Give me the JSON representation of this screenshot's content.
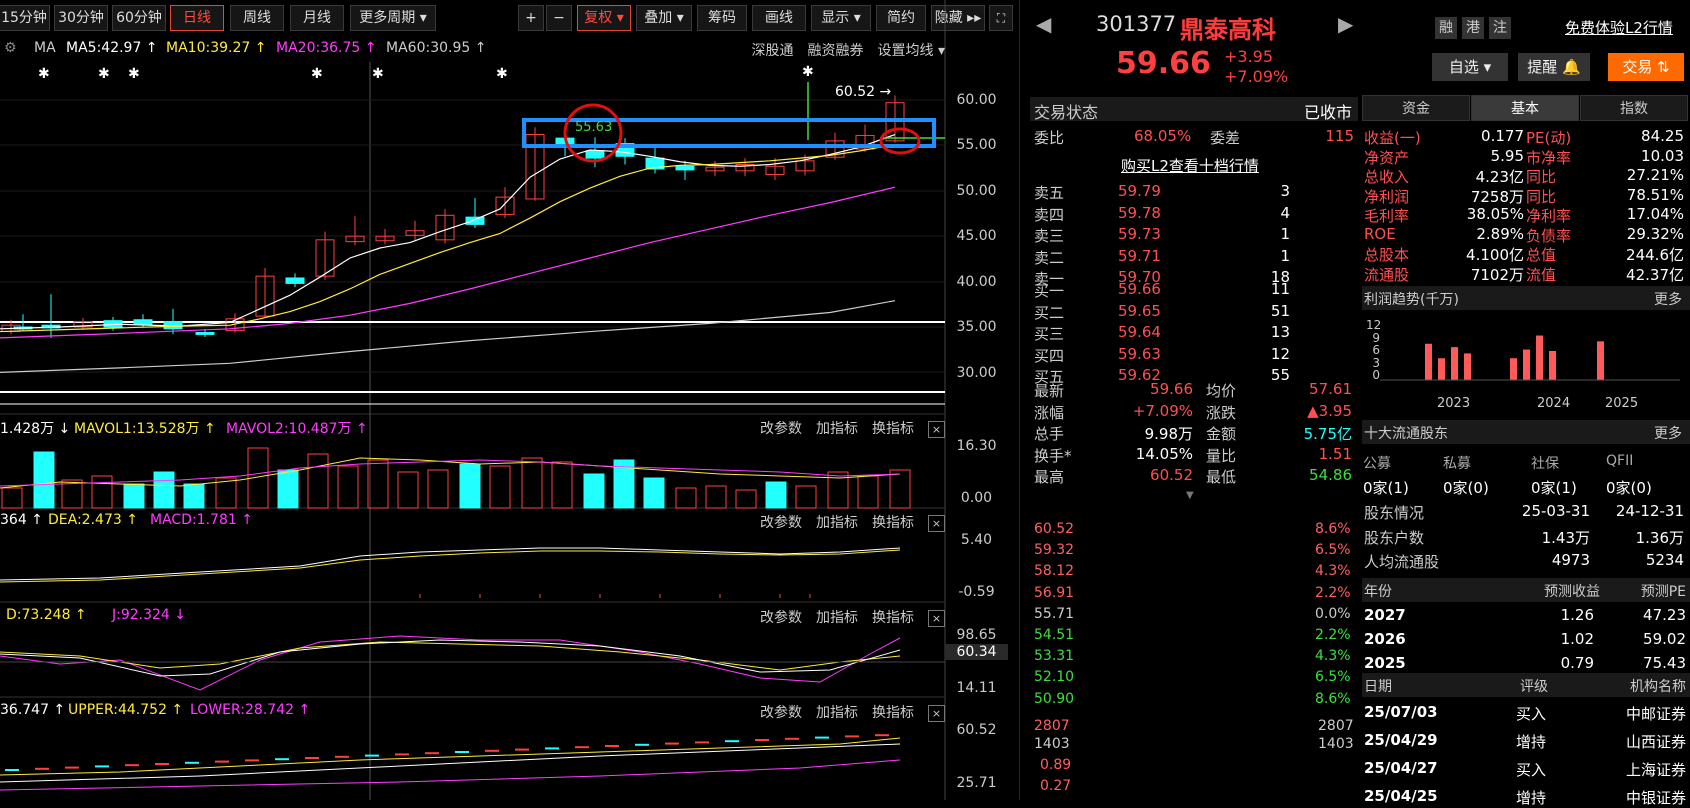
{
  "toolbar": {
    "periods": [
      "15分钟",
      "30分钟",
      "60分钟",
      "日线",
      "周线",
      "月线",
      "更多周期 ▾"
    ],
    "active": "日线",
    "plus": "+",
    "minus": "−",
    "fuquan": "复权 ▾",
    "diejia": "叠加 ▾",
    "chouma": "筹码",
    "huaxian": "画线",
    "xianshi": "显示 ▾",
    "jianyue": "简约",
    "yincang": "隐藏 ▸▸",
    "fullscreen": "⛶"
  },
  "ma_legend": {
    "ma": "MA",
    "ma5": "MA5:42.97 ↑",
    "ma10": "MA10:39.27 ↑",
    "ma20": "MA20:36.75 ↑",
    "ma60": "MA60:30.95 ↑",
    "shengu": "深股通",
    "rongzi": "融资融券",
    "shezhi": "设置均线 ▾"
  },
  "price_axis": [
    "60.00",
    "55.00",
    "50.00",
    "45.00",
    "40.00",
    "35.00",
    "30.00"
  ],
  "annotation_high": "60.52 →",
  "annotation_mark": "55.63",
  "vol": {
    "v": "1.428万 ↓",
    "mavol1": "MAVOL1:13.528万 ↑",
    "mavol2": "MAVOL2:10.487万 ↑",
    "axis_top": "16.30",
    "axis_bot": "0.00"
  },
  "macd": {
    "dif": "364 ↑",
    "dea": "DEA:2.473 ↑",
    "macd": "MACD:1.781 ↑",
    "axis_top": "5.40",
    "axis_bot": "-0.59"
  },
  "kdj": {
    "d": "D:73.248 ↑",
    "j": "J:92.324 ↓",
    "axis_top": "98.65",
    "axis_mid": "60.34",
    "axis_bot": "14.11"
  },
  "boll": {
    "mid": "36.747 ↑",
    "upper": "UPPER:44.752 ↑",
    "lower": "LOWER:28.742 ↑",
    "axis_top": "60.52",
    "axis_bot": "25.71"
  },
  "pane_actions": {
    "gai": "改参数",
    "jia": "加指标",
    "huan": "换指标",
    "close": "×"
  },
  "stock": {
    "code": "301377",
    "name": "鼎泰高科",
    "price": "59.66",
    "change": "+3.95",
    "pct": "+7.09%",
    "rong": "融",
    "gang": "港",
    "zhu": "注",
    "free_l2": "免费体验L2行情",
    "zixuan": "自选 ▾",
    "tixing": "提醒 🔔",
    "jiaoyi": "交易 ⇅"
  },
  "status": {
    "label": "交易状态",
    "value": "已收市",
    "weibi_l": "委比",
    "weibi": "68.05%",
    "weicha_l": "委差",
    "weicha": "115",
    "buy_l2": "购买L2查看十档行情"
  },
  "asks": [
    {
      "label": "卖五",
      "price": "59.79",
      "vol": "3"
    },
    {
      "label": "卖四",
      "price": "59.78",
      "vol": "4"
    },
    {
      "label": "卖三",
      "price": "59.73",
      "vol": "1"
    },
    {
      "label": "卖二",
      "price": "59.71",
      "vol": "1"
    },
    {
      "label": "卖一",
      "price": "59.70",
      "vol": "18"
    }
  ],
  "bids": [
    {
      "label": "买一",
      "price": "59.66",
      "vol": "11"
    },
    {
      "label": "买二",
      "price": "59.65",
      "vol": "51"
    },
    {
      "label": "买三",
      "price": "59.64",
      "vol": "13"
    },
    {
      "label": "买四",
      "price": "59.63",
      "vol": "12"
    },
    {
      "label": "买五",
      "price": "59.62",
      "vol": "55"
    }
  ],
  "quote": [
    {
      "l1": "最新",
      "v1": "59.66",
      "l2": "均价",
      "v2": "57.61"
    },
    {
      "l1": "涨幅",
      "v1": "+7.09%",
      "l2": "涨跌",
      "v2": "▲3.95"
    },
    {
      "l1": "总手",
      "v1": "9.98万",
      "l2": "金额",
      "v2": "5.75亿"
    },
    {
      "l1": "换手*",
      "v1": "14.05%",
      "l2": "量比",
      "v2": "1.51"
    },
    {
      "l1": "最高",
      "v1": "60.52",
      "l2": "最低",
      "v2": "54.86"
    }
  ],
  "intraday": {
    "left_axis": [
      "60.52",
      "59.32",
      "58.12",
      "56.91",
      "55.71",
      "54.51",
      "53.31",
      "52.10",
      "50.90"
    ],
    "right_axis": [
      "8.6%",
      "6.5%",
      "4.3%",
      "2.2%",
      "0.0%",
      "2.2%",
      "4.3%",
      "6.5%",
      "8.6%"
    ],
    "vol_top": "2807",
    "vol_mid": "1403",
    "macd_top": "0.89",
    "macd_bot": "0.27",
    "vol_top_r": "2807",
    "vol_mid_r": "1403"
  },
  "tabs": [
    "资金",
    "基本",
    "指数"
  ],
  "tab_active": "基本",
  "fundamentals": [
    {
      "l1": "收益(一)",
      "v1": "0.177",
      "l2": "PE(动)",
      "v2": "84.25"
    },
    {
      "l1": "净资产",
      "v1": "5.95",
      "l2": "市净率",
      "v2": "10.03"
    },
    {
      "l1": "总收入",
      "v1": "4.23亿",
      "l2": "同比",
      "v2": "27.21%"
    },
    {
      "l1": "净利润",
      "v1": "7258万",
      "l2": "同比",
      "v2": "78.51%"
    },
    {
      "l1": "毛利率",
      "v1": "38.05%",
      "l2": "净利率",
      "v2": "17.04%"
    },
    {
      "l1": "ROE",
      "v1": "2.89%",
      "l2": "负债率",
      "v2": "29.32%"
    },
    {
      "l1": "总股本",
      "v1": "4.100亿",
      "l2": "总值",
      "v2": "244.6亿"
    },
    {
      "l1": "流通股",
      "v1": "7102万",
      "l2": "流值",
      "v2": "42.37亿"
    }
  ],
  "profit": {
    "title": "利润趋势(千万)",
    "more": "更多",
    "yaxis": [
      "12",
      "9",
      "6",
      "3",
      "0"
    ],
    "years": [
      "2023",
      "2024",
      "2025"
    ]
  },
  "chart_data": {
    "type": "bar",
    "categories": [
      "2023Q1",
      "2023Q2",
      "2023Q3",
      "2023Q4",
      "2024Q1",
      "2024Q2",
      "2024Q3",
      "2024Q4",
      "2025Q1"
    ],
    "values": [
      7.5,
      4.5,
      6.8,
      5.5,
      4.5,
      6.3,
      9.2,
      6.0,
      8.0
    ],
    "title": "利润趋势(千万)",
    "ylim": [
      0,
      12
    ]
  },
  "holders": {
    "title": "十大流通股东",
    "more": "更多",
    "cats": [
      "公募",
      "私募",
      "社保",
      "QFII"
    ],
    "counts": [
      "0家(1)",
      "0家(0)",
      "0家(1)",
      "0家(0)"
    ],
    "rows": [
      {
        "l": "股东情况",
        "a": "25-03-31",
        "b": "24-12-31"
      },
      {
        "l": "股东户数",
        "a": "1.43万",
        "b": "1.36万"
      },
      {
        "l": "人均流通股",
        "a": "4973",
        "b": "5234"
      }
    ]
  },
  "forecast": {
    "h1": "年份",
    "h2": "预测收益",
    "h3": "预测PE",
    "rows": [
      {
        "y": "2027",
        "e": "1.26",
        "pe": "47.23"
      },
      {
        "y": "2026",
        "e": "1.02",
        "pe": "59.02"
      },
      {
        "y": "2025",
        "e": "0.79",
        "pe": "75.43"
      }
    ]
  },
  "ratings": {
    "h1": "日期",
    "h2": "评级",
    "h3": "机构名称",
    "rows": [
      {
        "d": "25/07/03",
        "r": "买入",
        "o": "中邮证券"
      },
      {
        "d": "25/04/29",
        "r": "增持",
        "o": "山西证券"
      },
      {
        "d": "25/04/27",
        "r": "买入",
        "o": "上海证券"
      },
      {
        "d": "25/04/25",
        "r": "增持",
        "o": "中银证券"
      }
    ]
  }
}
